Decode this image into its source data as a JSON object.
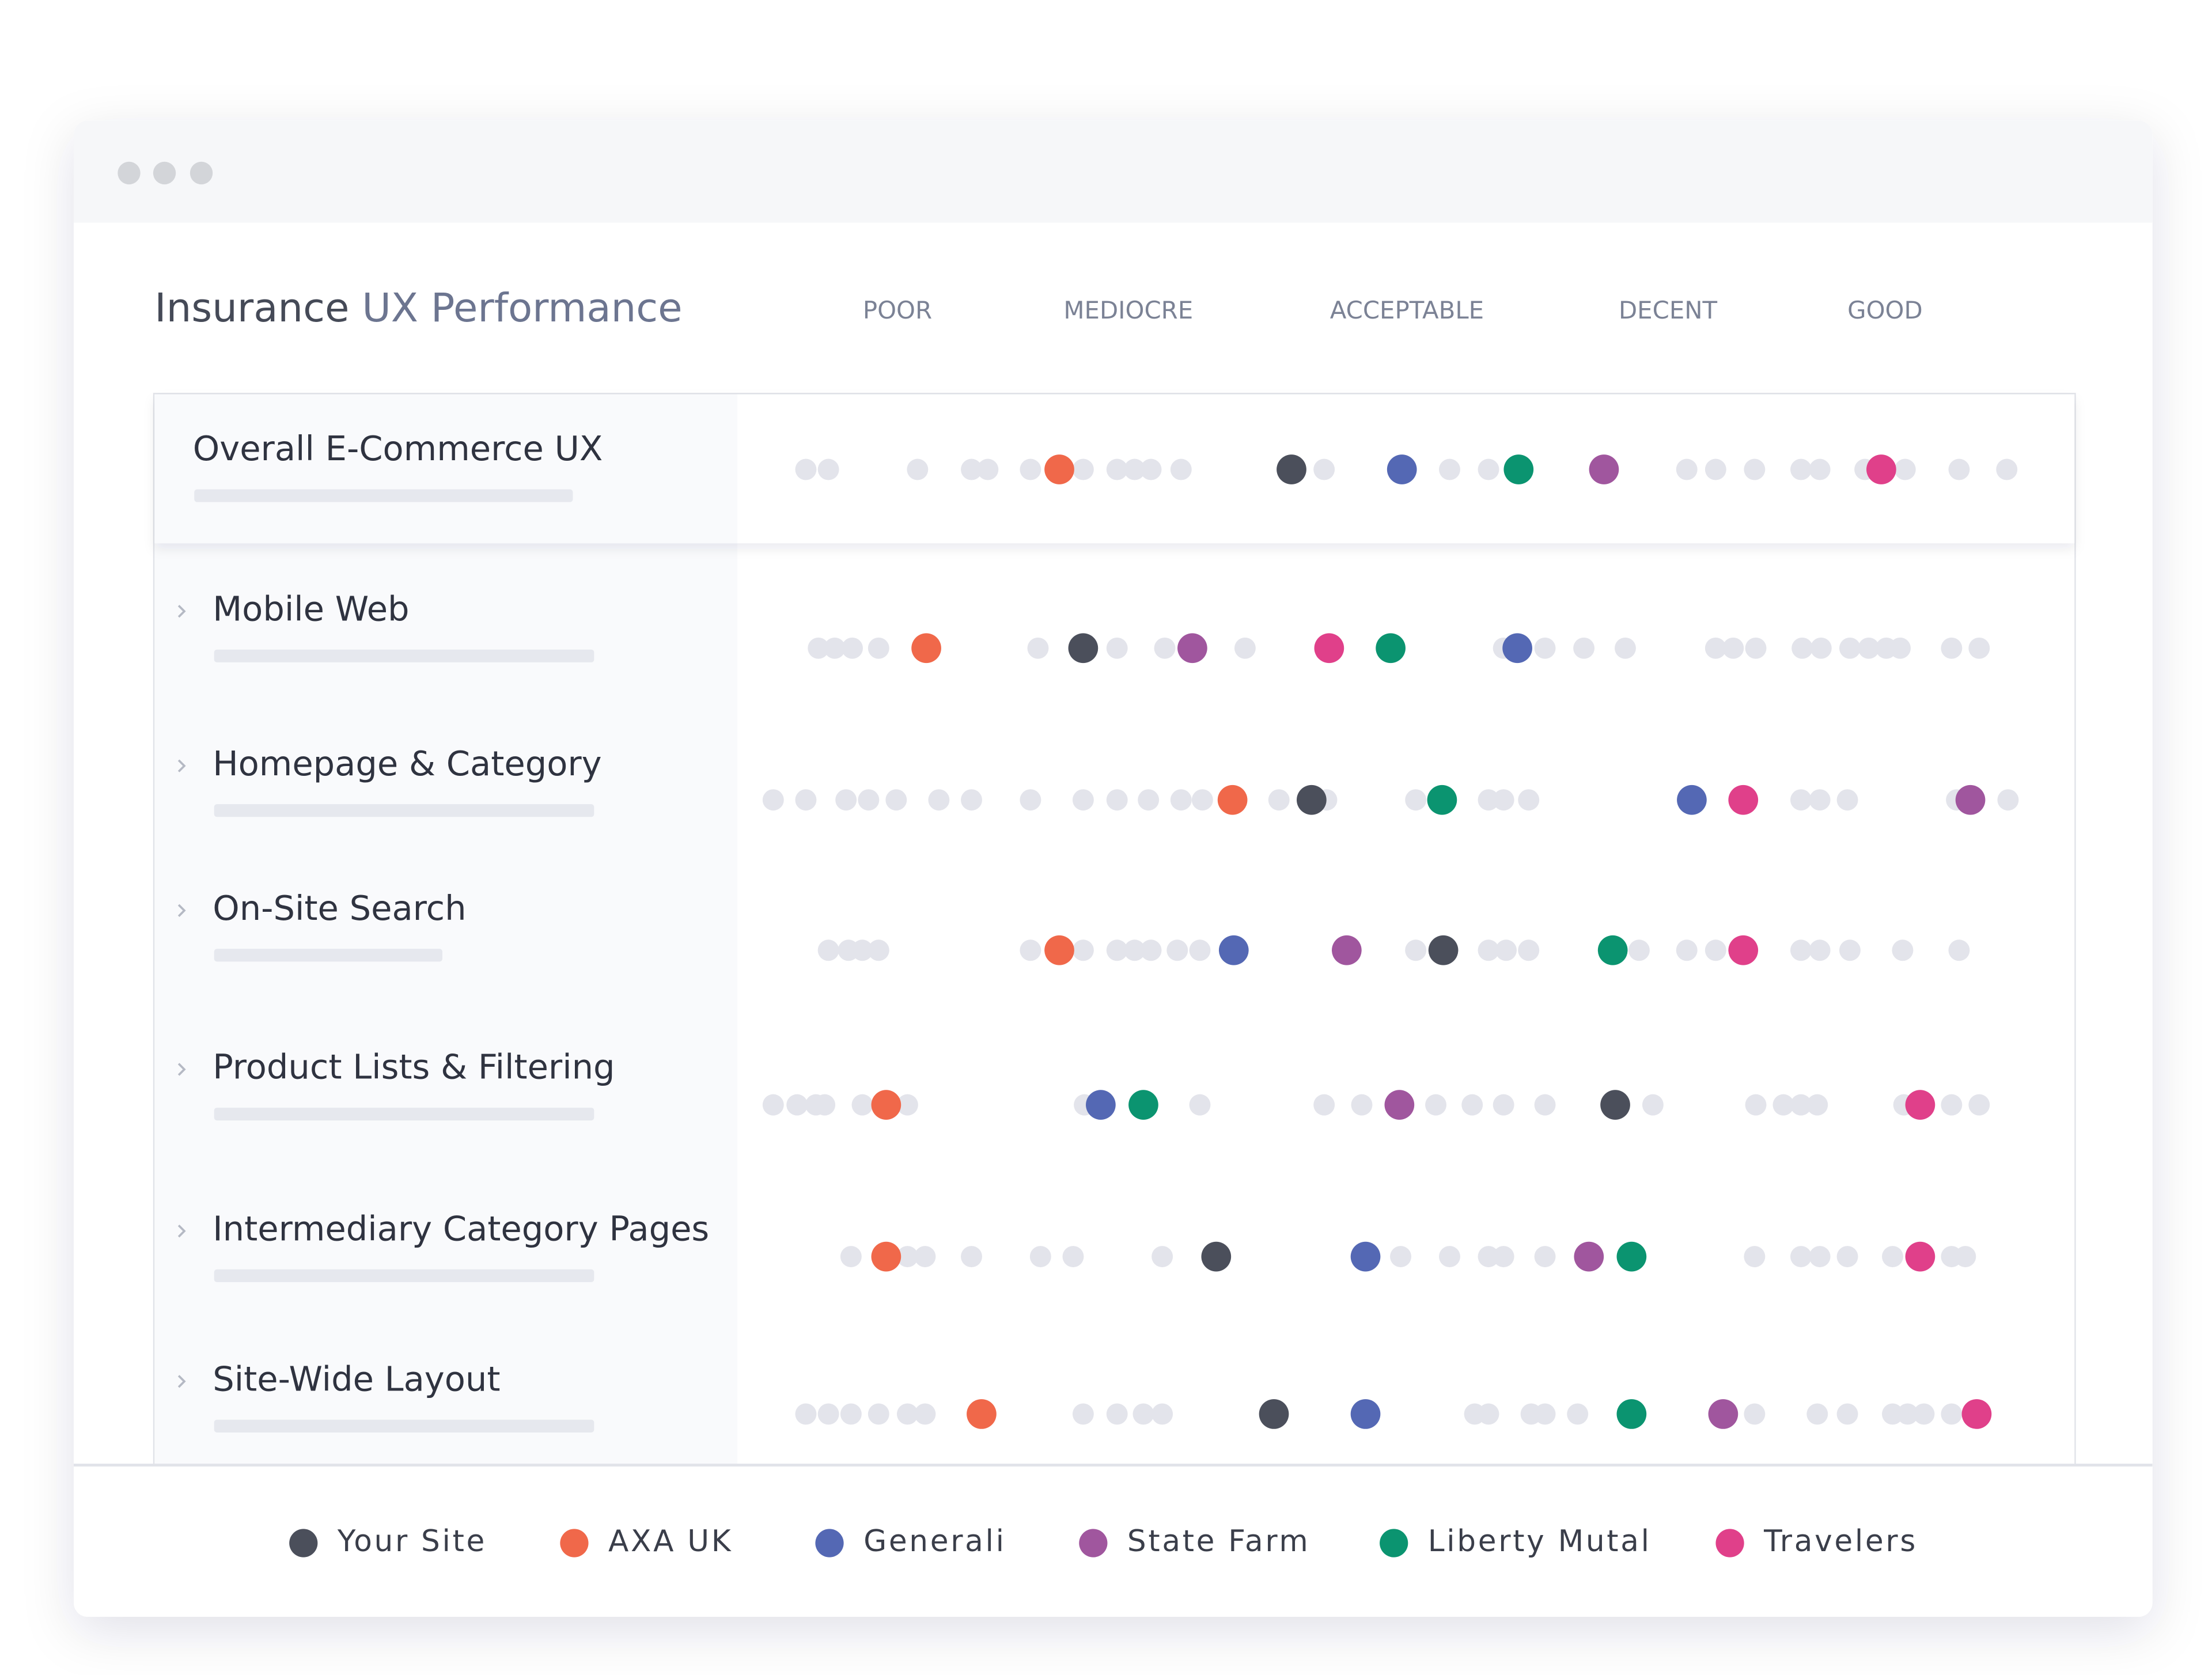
{
  "chart_data": {
    "type": "dot",
    "title": [
      "Insurance",
      "UX Performance"
    ],
    "xlim": [
      0,
      100
    ],
    "xticks": [
      {
        "value": 10.5,
        "label": "POOR"
      },
      {
        "value": 28.9,
        "label": "MEDIOCRE"
      },
      {
        "value": 51.1,
        "label": "ACCEPTABLE"
      },
      {
        "value": 71.9,
        "label": "DECENT"
      },
      {
        "value": 89.2,
        "label": "GOOD"
      }
    ],
    "categories": [
      "Overall E-Commerce UX",
      "Mobile Web",
      "Homepage & Category",
      "On-Site Search",
      "Product Lists & Filtering",
      "Intermediary Category Pages",
      "Site-Wide Layout"
    ],
    "others_color": "#e3e4eb",
    "others": [
      [
        3.2,
        5.0,
        12.1,
        16.4,
        17.7,
        21.1,
        25.3,
        28.0,
        29.4,
        30.7,
        33.1,
        44.5,
        54.5,
        57.6,
        73.4,
        75.7,
        78.8,
        82.5,
        84.0,
        87.6,
        90.8,
        95.1,
        98.9
      ],
      [
        4.2,
        5.5,
        6.9,
        9.0,
        21.7,
        28.0,
        31.8,
        38.2,
        58.8,
        62.1,
        65.2,
        68.5,
        75.7,
        77.1,
        78.9,
        82.6,
        84.1,
        86.4,
        87.9,
        89.3,
        90.4,
        94.5,
        96.7
      ],
      [
        0.6,
        3.2,
        6.4,
        8.2,
        10.4,
        13.8,
        16.4,
        21.1,
        25.3,
        28.0,
        30.5,
        33.1,
        34.8,
        40.9,
        44.7,
        51.8,
        57.6,
        58.8,
        60.8,
        82.5,
        84.0,
        86.2,
        94.9,
        99.0
      ],
      [
        5.0,
        6.6,
        7.7,
        9.0,
        21.1,
        25.3,
        28.0,
        29.4,
        30.7,
        32.8,
        34.6,
        51.8,
        57.6,
        59.0,
        60.8,
        69.6,
        73.4,
        75.7,
        82.5,
        84.0,
        86.4,
        90.6,
        95.1
      ],
      [
        0.6,
        2.5,
        4.0,
        4.7,
        7.7,
        11.3,
        25.4,
        34.6,
        44.5,
        47.5,
        53.4,
        56.3,
        58.8,
        62.1,
        70.7,
        78.9,
        81.1,
        82.5,
        83.8,
        90.7,
        94.5,
        96.7
      ],
      [
        6.8,
        11.3,
        12.7,
        16.4,
        21.9,
        24.5,
        31.6,
        50.6,
        54.5,
        57.6,
        58.8,
        62.1,
        78.8,
        82.5,
        84.0,
        86.2,
        89.8,
        94.5,
        95.6
      ],
      [
        3.2,
        5.0,
        6.8,
        9.0,
        11.3,
        12.7,
        25.3,
        28.0,
        30.1,
        31.6,
        56.5,
        57.6,
        61.0,
        62.1,
        64.7,
        78.8,
        83.8,
        86.2,
        89.8,
        91.0,
        92.3,
        94.5
      ]
    ],
    "series": [
      {
        "name": "Your Site",
        "color": "#4b4f5b",
        "values": [
          41.9,
          25.3,
          43.5,
          54.0,
          67.7,
          35.9,
          40.5
        ]
      },
      {
        "name": "AXA UK",
        "color": "#f0684a",
        "values": [
          23.4,
          12.8,
          37.2,
          23.4,
          9.6,
          9.6,
          17.2
        ]
      },
      {
        "name": "Generali",
        "color": "#5468b4",
        "values": [
          50.7,
          59.9,
          73.8,
          37.3,
          26.7,
          47.8,
          47.8
        ]
      },
      {
        "name": "State Farm",
        "color": "#a0569e",
        "values": [
          66.8,
          34.0,
          96.0,
          46.3,
          50.5,
          65.6,
          76.3
        ]
      },
      {
        "name": "Liberty Mutal",
        "color": "#0b9470",
        "values": [
          60.0,
          49.8,
          53.9,
          67.5,
          30.1,
          69.0,
          69.0
        ]
      },
      {
        "name": "Travelers",
        "color": "#e0408a",
        "values": [
          88.9,
          44.9,
          77.9,
          77.9,
          92.0,
          92.0,
          96.5
        ]
      }
    ],
    "legend": "bottom"
  }
}
